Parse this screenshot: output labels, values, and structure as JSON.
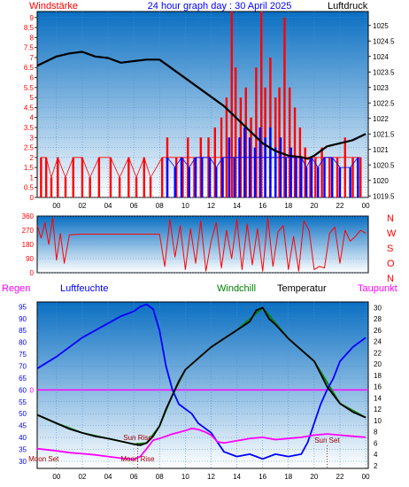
{
  "header": {
    "left_label": "Windstärke",
    "title": "24 hour graph day : 30 April 2025",
    "right_label": "Luftdruck"
  },
  "colors": {
    "red": "#ff0000",
    "blue": "#0000ff",
    "black": "#000000",
    "green": "#008000",
    "magenta": "#ff00ff",
    "dark_red": "#a00000",
    "bg_top": "#0a6fc2",
    "bg_bottom": "#ffffff"
  },
  "chart_data": [
    {
      "type": "line",
      "name": "wind-pressure",
      "x_ticks": [
        "00",
        "02",
        "04",
        "06",
        "08",
        "10",
        "12",
        "14",
        "16",
        "18",
        "20",
        "22",
        "00"
      ],
      "x_range_hours": [
        -1.5,
        24.2
      ],
      "left_axis": {
        "label": "Windstärke",
        "ticks": [
          "0",
          "0.5",
          "1",
          "1.5",
          "2",
          "2.5",
          "3",
          "3.5",
          "4",
          "4.5",
          "5",
          "5.5",
          "6",
          "6.5",
          "7",
          "7.5",
          "8",
          "8.5",
          "9"
        ],
        "range": [
          0,
          9.3
        ]
      },
      "right_axis": {
        "label": "Luftdruck",
        "ticks": [
          "1019.5",
          "1020",
          "1020.5",
          "1021",
          "1021.5",
          "1022",
          "1022.5",
          "1023",
          "1023.5",
          "1024",
          "1024.5",
          "1025"
        ],
        "range": [
          1019.45,
          1025.45
        ]
      },
      "series": [
        {
          "color": "#000000",
          "axis": "right",
          "x": [
            -1.5,
            -1,
            0,
            1,
            2,
            3,
            4,
            5,
            6,
            7,
            8,
            9,
            10,
            11,
            12,
            13,
            14,
            15,
            16,
            17,
            18,
            19,
            19.5,
            20,
            21,
            22,
            23,
            24
          ],
          "y": [
            1023.7,
            1023.8,
            1024.0,
            1024.1,
            1024.15,
            1024.0,
            1023.95,
            1023.8,
            1023.85,
            1023.9,
            1023.9,
            1023.6,
            1023.3,
            1023.0,
            1022.7,
            1022.4,
            1022.0,
            1021.6,
            1021.2,
            1020.95,
            1020.8,
            1020.75,
            1020.7,
            1020.8,
            1021.1,
            1021.2,
            1021.3,
            1021.5
          ]
        },
        {
          "color": "#ff0000",
          "axis": "left",
          "style": "spikes",
          "x": [
            -1.2,
            -0.8,
            -0.4,
            0.1,
            0.7,
            1.3,
            2.0,
            2.6,
            3.3,
            4.2,
            4.9,
            5.6,
            6.2,
            6.8,
            7.3,
            8.2,
            8.6,
            9.3,
            9.8,
            10.2,
            10.7,
            11.2,
            11.8,
            12.3,
            12.8,
            13.2,
            13.6,
            13.9,
            14.3,
            14.7,
            15.1,
            15.5,
            15.9,
            16.2,
            16.6,
            17.0,
            17.3,
            17.7,
            18.1,
            18.5,
            18.9,
            19.3,
            19.7,
            20.1,
            20.6,
            21.2,
            21.8,
            22.4,
            23.0,
            23.6
          ],
          "y": [
            2,
            2,
            1,
            2,
            1,
            2,
            2,
            1,
            2,
            2,
            1,
            2,
            1,
            2,
            1,
            2,
            3,
            2,
            2,
            3,
            2,
            3,
            3,
            3.5,
            4,
            5,
            9.3,
            6.5,
            5,
            5.5,
            4,
            6.5,
            9.3,
            5.5,
            7,
            5,
            5.5,
            9,
            5.5,
            4.5,
            3.5,
            2.5,
            2,
            2,
            2.5,
            2,
            2,
            3,
            2,
            2
          ]
        },
        {
          "color": "#0000ff",
          "axis": "left",
          "style": "spikes",
          "x": [
            8.6,
            9.2,
            9.7,
            10.3,
            10.8,
            11.3,
            11.9,
            12.4,
            12.9,
            13.4,
            13.8,
            14.2,
            14.6,
            15.0,
            15.4,
            15.8,
            16.2,
            16.6,
            17.0,
            17.4,
            17.8,
            18.2,
            18.6,
            19.0,
            19.4,
            19.8,
            20.3,
            20.8,
            21.4,
            22.0,
            22.8,
            23.4
          ],
          "y": [
            2,
            1.5,
            2,
            1.5,
            2,
            2,
            2,
            1.5,
            2,
            3,
            2,
            3,
            3.5,
            3,
            2.5,
            3.5,
            3,
            3.5,
            2.5,
            3,
            2,
            2.5,
            2,
            2,
            1.5,
            2,
            1.5,
            2,
            2,
            1.5,
            1.5,
            2
          ]
        }
      ]
    },
    {
      "type": "line",
      "name": "wind-direction",
      "left_axis": {
        "ticks": [
          "0",
          "90",
          "180",
          "270",
          "360"
        ],
        "range": [
          0,
          360
        ]
      },
      "compass_labels": [
        "N",
        "W",
        "S",
        "O",
        "N"
      ],
      "series": [
        {
          "color": "#ff0000",
          "x": [
            -1.5,
            -1.2,
            -0.9,
            -0.6,
            -0.3,
            0.0,
            0.3,
            0.6,
            1.0,
            2.0,
            4.0,
            6.0,
            8.0,
            8.4,
            8.8,
            9.2,
            9.6,
            10.0,
            10.4,
            10.8,
            11.2,
            11.6,
            12.0,
            12.4,
            12.8,
            13.2,
            13.6,
            14.0,
            14.4,
            14.8,
            15.2,
            15.6,
            16.0,
            16.4,
            16.8,
            17.2,
            17.6,
            18.0,
            18.4,
            18.8,
            19.2,
            19.6,
            20.0,
            20.4,
            20.8,
            21.2,
            21.6,
            22.0,
            22.4,
            22.8,
            23.2,
            23.6,
            24.0
          ],
          "y": [
            300,
            220,
            320,
            180,
            350,
            80,
            250,
            60,
            240,
            245,
            245,
            245,
            245,
            40,
            340,
            100,
            300,
            20,
            280,
            60,
            330,
            10,
            200,
            320,
            30,
            270,
            90,
            340,
            20,
            310,
            50,
            280,
            10,
            350,
            40,
            260,
            300,
            20,
            230,
            10,
            330,
            270,
            20,
            40,
            30,
            250,
            290,
            60,
            270,
            200,
            230,
            270,
            250
          ]
        }
      ]
    },
    {
      "type": "line",
      "name": "temperature-humidity",
      "header": {
        "regen": "Regen",
        "luftfeuchte": "Luftfeuchte",
        "windchill": "Windchill",
        "temperatur": "Temperatur",
        "taupunkt": "Taupunkt"
      },
      "left_axis": {
        "label": "Luftfeuchte",
        "ticks": [
          "30",
          "35",
          "40",
          "45",
          "50",
          "55",
          "60",
          "65",
          "70",
          "75",
          "80",
          "85",
          "90",
          "95"
        ],
        "range": [
          27,
          97
        ]
      },
      "rain_axis": {
        "label": "Regen",
        "ticks": [
          "0"
        ]
      },
      "right_axis": {
        "label": "Temperatur",
        "ticks": [
          "2",
          "4",
          "6",
          "8",
          "10",
          "12",
          "14",
          "16",
          "18",
          "20",
          "22",
          "24",
          "26",
          "28",
          "30"
        ],
        "range": [
          1.5,
          31
        ]
      },
      "annotations": [
        {
          "text": "Moon Set",
          "x": -1.0
        },
        {
          "text": "Sun Rise",
          "x": 6.3
        },
        {
          "text": "Moon Rise",
          "x": 6.3
        },
        {
          "text": "Sun Set",
          "x": 21.0
        }
      ],
      "series": [
        {
          "name": "Luftfeuchte",
          "color": "#0000ff",
          "axis": "left",
          "x": [
            -1.5,
            0,
            1,
            2,
            3,
            4,
            5,
            6,
            6.5,
            7,
            7.5,
            8,
            8.5,
            9,
            9.5,
            10,
            10.5,
            11,
            11.5,
            12,
            12.5,
            13,
            14,
            15,
            16,
            17,
            18,
            19,
            19.5,
            20,
            20.5,
            21,
            21.5,
            22,
            23,
            24
          ],
          "y": [
            69,
            74,
            78,
            82,
            85,
            88,
            91,
            93,
            95,
            96,
            94,
            85,
            70,
            60,
            54,
            52,
            50,
            46,
            44,
            42,
            38,
            34,
            32,
            33,
            31,
            33,
            32,
            33,
            38,
            46,
            54,
            60,
            65,
            72,
            78,
            82
          ]
        },
        {
          "name": "Temperatur",
          "color": "#000000",
          "axis": "right",
          "x": [
            -1.5,
            0,
            1,
            2,
            3,
            4,
            5,
            6,
            6.5,
            7,
            7.5,
            8,
            8.5,
            9,
            9.5,
            10,
            11,
            12,
            13,
            14,
            15,
            15.5,
            16,
            16.5,
            17,
            18,
            19,
            20,
            21,
            22,
            23,
            24
          ],
          "y": [
            11,
            9.5,
            8.5,
            7.8,
            7.2,
            6.8,
            6.3,
            5.8,
            5.6,
            6.0,
            7.2,
            9,
            12,
            14.5,
            17,
            19,
            21,
            23,
            24.5,
            26,
            27.5,
            29.5,
            30,
            28,
            27,
            24.5,
            22.5,
            20.5,
            16,
            13,
            11.5,
            10.5
          ]
        },
        {
          "name": "Windchill",
          "color": "#008000",
          "axis": "right",
          "x": [
            -1.5,
            0,
            2,
            4,
            6,
            7,
            8,
            9,
            10,
            12,
            14,
            16,
            18,
            20,
            22,
            24
          ],
          "y": [
            11,
            9.5,
            7.8,
            6.8,
            5.8,
            6.0,
            9,
            14.5,
            19,
            23,
            26,
            30,
            24.5,
            20.5,
            13,
            10.5
          ]
        },
        {
          "name": "Taupunkt",
          "color": "#ff00ff",
          "axis": "right",
          "x": [
            -1.5,
            0,
            1,
            2,
            3,
            4,
            5,
            6,
            6.5,
            7,
            7.5,
            8,
            8.5,
            9,
            9.5,
            10,
            10.5,
            11,
            11.5,
            12,
            12.5,
            13,
            14,
            15,
            16,
            17,
            18,
            19,
            20,
            21,
            22,
            23,
            24
          ],
          "y": [
            5.0,
            4.6,
            4.3,
            4.1,
            3.9,
            3.6,
            3.3,
            3.1,
            3.6,
            5.0,
            6.5,
            6.8,
            7.2,
            7.6,
            7.9,
            8.2,
            8.6,
            8.4,
            8.0,
            7.4,
            6.2,
            6.0,
            6.4,
            6.8,
            7.0,
            6.6,
            6.8,
            7.0,
            7.4,
            7.6,
            7.4,
            7.2,
            7.0
          ]
        }
      ]
    }
  ]
}
